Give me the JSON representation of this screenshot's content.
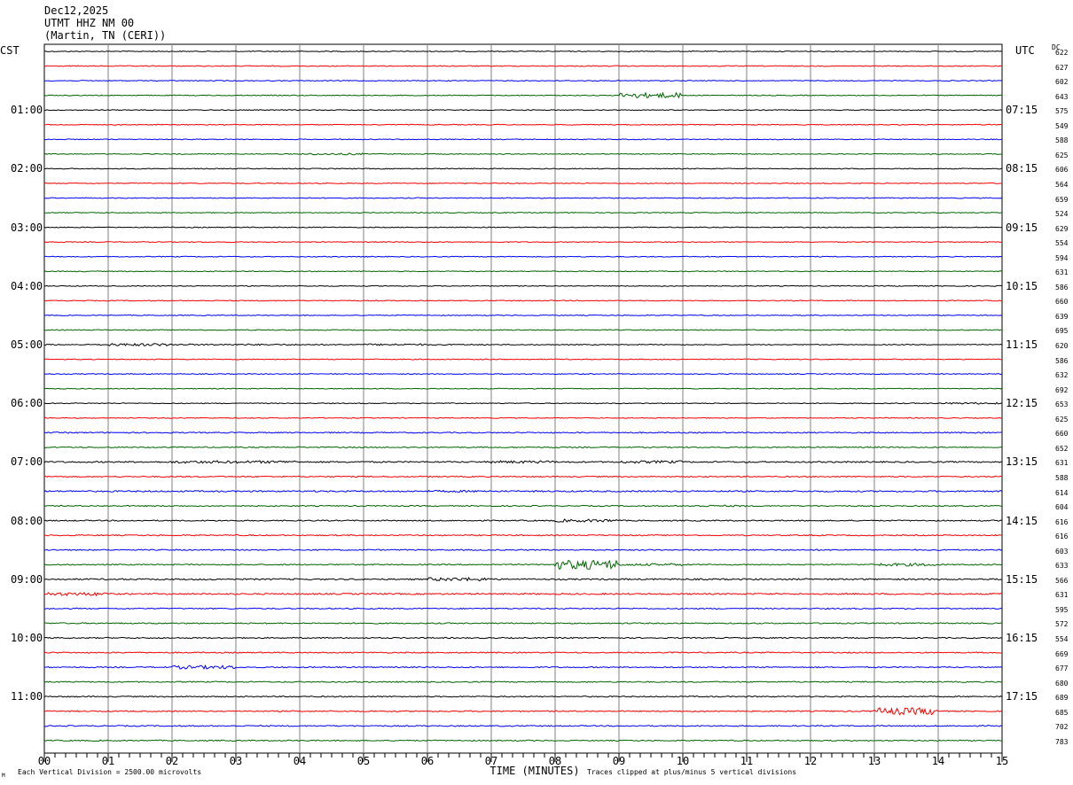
{
  "header": {
    "date": "Dec12,2025",
    "station": "UTMT HHZ NM 00",
    "location": "(Martin, TN (CERI))"
  },
  "left_timezone": "CST",
  "right_timezone": "UTC",
  "dc_label": "DC",
  "footer": {
    "division_note": "Each Vertical Division = 2500.00 microvolts",
    "clip_note": "Traces clipped at plus/minus 5 vertical divisions",
    "corner_mark": "M"
  },
  "colors": {
    "trace_cycle": [
      "#000000",
      "#ff0000",
      "#0000ff",
      "#006400"
    ],
    "gridline": "#808080"
  },
  "chart_data": {
    "type": "line",
    "xlabel": "TIME (MINUTES)",
    "xlim": [
      0,
      15
    ],
    "x_tick_labels": [
      "00",
      "01",
      "02",
      "03",
      "04",
      "05",
      "06",
      "07",
      "08",
      "09",
      "10",
      "11",
      "12",
      "13",
      "14",
      "15"
    ],
    "left_hour_labels": [
      "01:00",
      "02:00",
      "03:00",
      "04:00",
      "05:00",
      "06:00",
      "07:00",
      "08:00",
      "09:00",
      "10:00",
      "11:00"
    ],
    "right_hour_labels": [
      "07:15",
      "08:15",
      "09:15",
      "10:15",
      "11:15",
      "12:15",
      "13:15",
      "14:15",
      "15:15",
      "16:15",
      "17:15"
    ],
    "dc_offsets": [
      622,
      627,
      602,
      643,
      575,
      549,
      588,
      625,
      606,
      564,
      659,
      524,
      629,
      554,
      594,
      631,
      586,
      660,
      639,
      695,
      620,
      586,
      632,
      692,
      653,
      625,
      660,
      652,
      631,
      588,
      614,
      604,
      616,
      616,
      603,
      633,
      566,
      631,
      595,
      572,
      554,
      669,
      677,
      680,
      689,
      685,
      702,
      783
    ],
    "series": [
      {
        "values": [
          0.3,
          0.3,
          0.3,
          0.3,
          0.3,
          0.3,
          0.3,
          0.3,
          0.3,
          0.3,
          0.3,
          0.3,
          0.3,
          0.3,
          0.3,
          0.3
        ]
      },
      {
        "values": [
          0.3,
          0.3,
          0.3,
          0.3,
          0.3,
          0.3,
          0.3,
          0.3,
          0.3,
          0.3,
          0.3,
          0.3,
          0.3,
          0.3,
          0.3,
          0.3
        ]
      },
      {
        "values": [
          0.3,
          0.3,
          0.3,
          0.3,
          0.3,
          0.3,
          0.3,
          0.3,
          0.3,
          0.3,
          0.3,
          0.3,
          0.3,
          0.3,
          0.3,
          0.3
        ]
      },
      {
        "values": [
          0.3,
          0.3,
          0.3,
          0.3,
          0.3,
          0.3,
          0.3,
          0.3,
          0.3,
          1.8,
          0.3,
          0.3,
          0.3,
          0.3,
          0.3,
          0.3
        ]
      },
      {
        "values": [
          0.3,
          0.3,
          0.3,
          0.3,
          0.3,
          0.3,
          0.3,
          0.3,
          0.3,
          0.3,
          0.3,
          0.3,
          0.3,
          0.3,
          0.3,
          0.3
        ]
      },
      {
        "values": [
          0.3,
          0.3,
          0.3,
          0.3,
          0.3,
          0.3,
          0.3,
          0.3,
          0.3,
          0.3,
          0.3,
          0.3,
          0.3,
          0.3,
          0.3,
          0.3
        ]
      },
      {
        "values": [
          0.3,
          0.3,
          0.3,
          0.3,
          0.3,
          0.3,
          0.3,
          0.3,
          0.3,
          0.3,
          0.3,
          0.3,
          0.3,
          0.3,
          0.3,
          0.3
        ]
      },
      {
        "values": [
          0.3,
          0.3,
          0.3,
          0.3,
          0.6,
          0.3,
          0.3,
          0.3,
          0.3,
          0.3,
          0.3,
          0.3,
          0.3,
          0.3,
          0.3,
          0.3
        ]
      },
      {
        "values": [
          0.3,
          0.3,
          0.3,
          0.3,
          0.3,
          0.3,
          0.3,
          0.3,
          0.3,
          0.3,
          0.3,
          0.3,
          0.3,
          0.3,
          0.3,
          0.3
        ]
      },
      {
        "values": [
          0.3,
          0.3,
          0.3,
          0.3,
          0.3,
          0.3,
          0.3,
          0.3,
          0.3,
          0.3,
          0.3,
          0.3,
          0.3,
          0.3,
          0.3,
          0.3
        ]
      },
      {
        "values": [
          0.3,
          0.3,
          0.3,
          0.3,
          0.3,
          0.3,
          0.3,
          0.3,
          0.3,
          0.3,
          0.3,
          0.3,
          0.3,
          0.3,
          0.3,
          0.3
        ]
      },
      {
        "values": [
          0.3,
          0.3,
          0.3,
          0.3,
          0.3,
          0.3,
          0.3,
          0.3,
          0.3,
          0.3,
          0.3,
          0.3,
          0.3,
          0.3,
          0.3,
          0.3
        ]
      },
      {
        "values": [
          0.3,
          0.3,
          0.3,
          0.3,
          0.3,
          0.3,
          0.3,
          0.3,
          0.3,
          0.3,
          0.3,
          0.3,
          0.3,
          0.3,
          0.3,
          0.3
        ]
      },
      {
        "values": [
          0.3,
          0.3,
          0.3,
          0.3,
          0.3,
          0.3,
          0.3,
          0.3,
          0.3,
          0.3,
          0.3,
          0.3,
          0.3,
          0.3,
          0.3,
          0.3
        ]
      },
      {
        "values": [
          0.3,
          0.3,
          0.3,
          0.3,
          0.3,
          0.3,
          0.3,
          0.3,
          0.3,
          0.3,
          0.3,
          0.3,
          0.3,
          0.3,
          0.3,
          0.3
        ]
      },
      {
        "values": [
          0.3,
          0.3,
          0.3,
          0.3,
          0.3,
          0.3,
          0.3,
          0.3,
          0.3,
          0.3,
          0.3,
          0.3,
          0.3,
          0.3,
          0.3,
          0.3
        ]
      },
      {
        "values": [
          0.3,
          0.3,
          0.3,
          0.3,
          0.3,
          0.3,
          0.3,
          0.3,
          0.3,
          0.3,
          0.3,
          0.3,
          0.3,
          0.3,
          0.3,
          0.3
        ]
      },
      {
        "values": [
          0.3,
          0.3,
          0.3,
          0.3,
          0.3,
          0.3,
          0.3,
          0.3,
          0.3,
          0.3,
          0.3,
          0.3,
          0.3,
          0.3,
          0.3,
          0.3
        ]
      },
      {
        "values": [
          0.3,
          0.3,
          0.3,
          0.3,
          0.3,
          0.3,
          0.3,
          0.3,
          0.3,
          0.3,
          0.3,
          0.3,
          0.3,
          0.3,
          0.3,
          0.3
        ]
      },
      {
        "values": [
          0.3,
          0.3,
          0.3,
          0.3,
          0.3,
          0.3,
          0.3,
          0.3,
          0.3,
          0.3,
          0.3,
          0.3,
          0.3,
          0.3,
          0.3,
          0.3
        ]
      },
      {
        "values": [
          0.4,
          0.9,
          0.5,
          0.5,
          0.4,
          0.6,
          0.4,
          0.3,
          0.3,
          0.3,
          0.3,
          0.3,
          0.3,
          0.3,
          0.3,
          0.3
        ]
      },
      {
        "values": [
          0.3,
          0.3,
          0.3,
          0.3,
          0.3,
          0.3,
          0.3,
          0.3,
          0.3,
          0.3,
          0.3,
          0.3,
          0.3,
          0.3,
          0.3,
          0.3
        ]
      },
      {
        "values": [
          0.3,
          0.3,
          0.3,
          0.3,
          0.3,
          0.3,
          0.3,
          0.3,
          0.3,
          0.3,
          0.3,
          0.3,
          0.3,
          0.3,
          0.3,
          0.3
        ]
      },
      {
        "values": [
          0.3,
          0.3,
          0.3,
          0.3,
          0.3,
          0.3,
          0.3,
          0.3,
          0.3,
          0.3,
          0.3,
          0.3,
          0.3,
          0.3,
          0.3,
          0.6
        ]
      },
      {
        "values": [
          0.3,
          0.3,
          0.3,
          0.3,
          0.3,
          0.3,
          0.3,
          0.3,
          0.3,
          0.3,
          0.3,
          0.3,
          0.3,
          0.3,
          0.6,
          0.3
        ]
      },
      {
        "values": [
          0.3,
          0.3,
          0.3,
          0.3,
          0.3,
          0.3,
          0.3,
          0.3,
          0.3,
          0.3,
          0.3,
          0.3,
          0.3,
          0.3,
          0.3,
          0.3
        ]
      },
      {
        "values": [
          0.4,
          0.4,
          0.4,
          0.4,
          0.4,
          0.4,
          0.4,
          0.4,
          0.4,
          0.4,
          0.4,
          0.4,
          0.4,
          0.4,
          0.4,
          0.4
        ]
      },
      {
        "values": [
          0.4,
          0.4,
          0.4,
          0.4,
          0.4,
          0.4,
          0.4,
          0.4,
          0.4,
          0.4,
          0.4,
          0.4,
          0.4,
          0.4,
          0.4,
          0.4
        ]
      },
      {
        "values": [
          0.5,
          0.5,
          0.9,
          0.9,
          0.5,
          0.5,
          0.5,
          0.9,
          0.5,
          0.9,
          0.5,
          0.5,
          0.5,
          0.5,
          0.5,
          0.5
        ]
      },
      {
        "values": [
          0.4,
          0.4,
          0.4,
          0.4,
          0.4,
          0.4,
          0.4,
          0.4,
          0.4,
          0.4,
          0.4,
          0.4,
          0.4,
          0.4,
          0.4,
          0.4
        ]
      },
      {
        "values": [
          0.5,
          0.5,
          0.5,
          0.5,
          0.5,
          0.5,
          0.7,
          0.5,
          0.5,
          0.5,
          0.5,
          0.5,
          0.5,
          0.5,
          0.5,
          0.5
        ]
      },
      {
        "values": [
          0.4,
          0.4,
          0.4,
          0.4,
          0.4,
          0.4,
          0.4,
          0.4,
          0.4,
          0.4,
          0.6,
          0.4,
          0.4,
          0.4,
          0.4,
          0.4
        ]
      },
      {
        "values": [
          0.4,
          0.4,
          0.4,
          0.4,
          0.4,
          0.4,
          0.4,
          0.4,
          1.0,
          0.4,
          0.4,
          0.4,
          0.4,
          0.4,
          0.4,
          0.4
        ]
      },
      {
        "values": [
          0.4,
          0.4,
          0.4,
          0.4,
          0.4,
          0.4,
          0.4,
          0.4,
          0.4,
          0.4,
          0.4,
          0.4,
          0.4,
          0.4,
          0.4,
          0.4
        ]
      },
      {
        "values": [
          0.4,
          0.4,
          0.4,
          0.4,
          0.4,
          0.4,
          0.4,
          0.4,
          0.4,
          0.4,
          0.4,
          0.4,
          0.4,
          0.4,
          0.4,
          0.4
        ]
      },
      {
        "values": [
          0.4,
          0.4,
          0.4,
          0.4,
          0.4,
          0.4,
          0.4,
          0.4,
          3.2,
          0.8,
          0.4,
          0.4,
          0.4,
          1.0,
          0.4,
          0.4
        ]
      },
      {
        "values": [
          0.5,
          0.5,
          0.5,
          0.5,
          0.5,
          0.5,
          1.2,
          0.5,
          0.5,
          0.5,
          0.5,
          0.5,
          0.5,
          0.5,
          0.5,
          0.5
        ]
      },
      {
        "values": [
          1.2,
          0.5,
          0.5,
          0.5,
          0.5,
          0.5,
          0.5,
          0.5,
          0.5,
          0.5,
          0.5,
          0.5,
          0.5,
          0.5,
          0.5,
          0.5
        ]
      },
      {
        "values": [
          0.4,
          0.4,
          0.4,
          0.4,
          0.4,
          0.4,
          0.4,
          0.4,
          0.4,
          0.4,
          0.4,
          0.4,
          0.4,
          0.4,
          0.4,
          0.4
        ]
      },
      {
        "values": [
          0.4,
          0.4,
          0.4,
          0.4,
          0.4,
          0.4,
          0.4,
          0.4,
          0.4,
          0.4,
          0.4,
          0.4,
          0.4,
          0.4,
          0.4,
          0.4
        ]
      },
      {
        "values": [
          0.4,
          0.4,
          0.4,
          0.4,
          0.4,
          0.4,
          0.4,
          0.4,
          0.4,
          0.4,
          0.4,
          0.4,
          0.4,
          0.4,
          0.4,
          0.4
        ]
      },
      {
        "values": [
          0.4,
          0.4,
          0.4,
          0.4,
          0.4,
          0.4,
          0.4,
          0.4,
          0.4,
          0.4,
          0.4,
          0.4,
          0.4,
          0.4,
          0.4,
          0.4
        ]
      },
      {
        "values": [
          0.4,
          0.4,
          1.2,
          0.4,
          0.4,
          0.4,
          0.4,
          0.4,
          0.4,
          0.4,
          0.4,
          0.4,
          0.4,
          0.4,
          0.4,
          0.4
        ]
      },
      {
        "values": [
          0.4,
          0.4,
          0.4,
          0.4,
          0.4,
          0.4,
          0.4,
          0.4,
          0.4,
          0.4,
          0.4,
          0.4,
          0.4,
          0.4,
          0.4,
          0.4
        ]
      },
      {
        "values": [
          0.4,
          0.4,
          0.4,
          0.4,
          0.4,
          0.4,
          0.4,
          0.4,
          0.4,
          0.4,
          0.4,
          0.4,
          0.4,
          0.4,
          0.4,
          0.4
        ]
      },
      {
        "values": [
          0.4,
          0.4,
          0.4,
          0.4,
          0.4,
          0.4,
          0.4,
          0.4,
          0.4,
          0.4,
          0.4,
          0.4,
          0.4,
          2.4,
          0.4,
          0.4
        ]
      },
      {
        "values": [
          0.4,
          0.4,
          0.4,
          0.4,
          0.4,
          0.4,
          0.4,
          0.4,
          0.4,
          0.4,
          0.4,
          0.4,
          0.4,
          0.4,
          0.4,
          0.4
        ]
      },
      {
        "values": [
          0.4,
          0.4,
          0.4,
          0.4,
          0.4,
          0.4,
          0.4,
          0.4,
          0.4,
          0.4,
          0.4,
          0.4,
          0.4,
          0.4,
          0.4,
          0.4
        ]
      }
    ]
  }
}
